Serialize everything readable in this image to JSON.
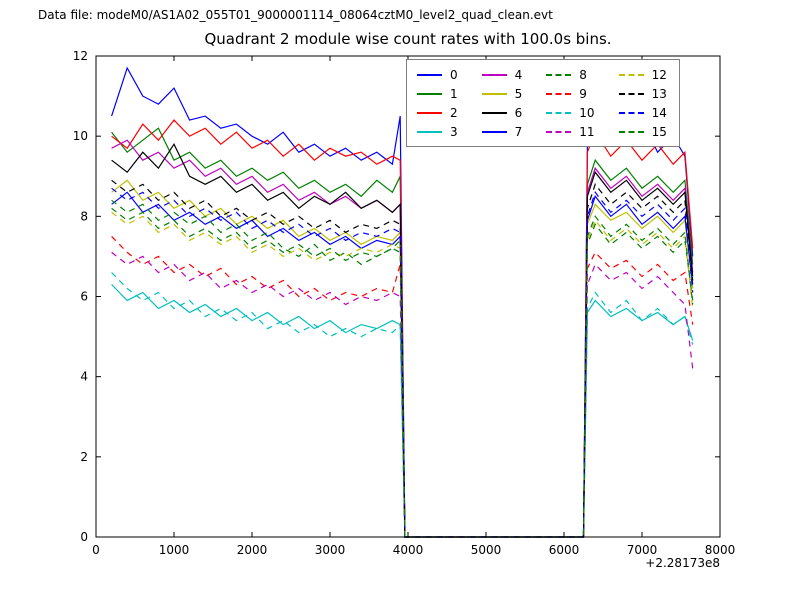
{
  "header": {
    "data_file_label": "Data file: modeM0/AS1A02_055T01_9000001114_08064cztM0_level2_quad_clean.evt"
  },
  "chart_data": {
    "type": "line",
    "title": "Quadrant 2 module wise count rates with 100.0s bins.",
    "xlabel": "",
    "ylabel": "",
    "xlim": [
      0,
      8000
    ],
    "ylim": [
      0,
      12
    ],
    "xticks": [
      0,
      1000,
      2000,
      3000,
      4000,
      5000,
      6000,
      7000,
      8000
    ],
    "yticks": [
      0,
      2,
      4,
      6,
      8,
      10,
      12
    ],
    "x_offset_label": "+2.28173e8",
    "grid": false,
    "legend_position": "upper center",
    "legend_columns": 4,
    "x": [
      200,
      400,
      600,
      800,
      1000,
      1200,
      1400,
      1600,
      1800,
      2000,
      2200,
      2400,
      2600,
      2800,
      3000,
      3200,
      3400,
      3600,
      3800,
      3900,
      3960,
      4000,
      6250,
      6300,
      6400,
      6600,
      6800,
      7000,
      7200,
      7400,
      7550,
      7650
    ],
    "series": [
      {
        "name": "0",
        "color": "#0000ff",
        "dash": false,
        "y": [
          10.5,
          11.7,
          11.0,
          10.8,
          11.2,
          10.4,
          10.5,
          10.2,
          10.3,
          10.0,
          9.8,
          10.1,
          9.6,
          9.8,
          9.5,
          9.7,
          9.4,
          9.6,
          9.3,
          10.5,
          0,
          0,
          0,
          9.8,
          11.3,
          10.2,
          9.9,
          10.4,
          9.6,
          10.0,
          9.5,
          7.0
        ]
      },
      {
        "name": "1",
        "color": "#007f00",
        "dash": false,
        "y": [
          10.1,
          9.6,
          9.9,
          10.2,
          9.4,
          9.6,
          9.2,
          9.4,
          9.0,
          9.2,
          8.9,
          9.1,
          8.7,
          8.9,
          8.6,
          8.8,
          8.5,
          8.9,
          8.6,
          9.0,
          0,
          0,
          0,
          8.8,
          9.4,
          8.9,
          9.2,
          8.7,
          9.0,
          8.6,
          8.9,
          6.8
        ]
      },
      {
        "name": "2",
        "color": "#ff0000",
        "dash": false,
        "y": [
          10.0,
          9.7,
          10.3,
          9.9,
          10.4,
          10.0,
          10.2,
          9.8,
          10.1,
          9.7,
          9.9,
          9.5,
          9.8,
          9.4,
          9.7,
          9.5,
          9.6,
          9.3,
          9.5,
          9.4,
          0,
          0,
          0,
          9.6,
          10.1,
          9.5,
          9.9,
          9.4,
          9.8,
          9.3,
          9.6,
          7.2
        ]
      },
      {
        "name": "3",
        "color": "#00bfbf",
        "dash": false,
        "y": [
          6.3,
          5.9,
          6.1,
          5.7,
          5.9,
          5.6,
          5.8,
          5.5,
          5.7,
          5.4,
          5.6,
          5.3,
          5.5,
          5.2,
          5.4,
          5.1,
          5.3,
          5.2,
          5.4,
          5.3,
          0,
          0,
          0,
          5.6,
          5.9,
          5.5,
          5.7,
          5.4,
          5.6,
          5.3,
          5.5,
          4.9
        ]
      },
      {
        "name": "4",
        "color": "#bf00bf",
        "dash": false,
        "y": [
          9.7,
          9.9,
          9.4,
          9.6,
          9.2,
          9.4,
          9.0,
          9.2,
          8.8,
          9.0,
          8.6,
          8.8,
          8.4,
          8.6,
          8.3,
          8.5,
          8.2,
          8.4,
          8.1,
          8.3,
          0,
          0,
          0,
          8.6,
          9.2,
          8.7,
          9.0,
          8.5,
          8.8,
          8.4,
          8.7,
          6.6
        ]
      },
      {
        "name": "5",
        "color": "#bfbf00",
        "dash": false,
        "y": [
          8.6,
          8.9,
          8.4,
          8.6,
          8.2,
          8.4,
          8.0,
          8.2,
          7.8,
          8.0,
          7.7,
          7.9,
          7.5,
          7.7,
          7.4,
          7.6,
          7.3,
          7.5,
          7.4,
          7.6,
          0,
          0,
          0,
          7.8,
          8.3,
          7.9,
          8.1,
          7.7,
          8.0,
          7.6,
          7.9,
          6.2
        ]
      },
      {
        "name": "6",
        "color": "#000000",
        "dash": false,
        "y": [
          9.4,
          9.1,
          9.6,
          9.2,
          9.8,
          9.0,
          8.8,
          9.0,
          8.6,
          8.8,
          8.4,
          8.6,
          8.2,
          8.5,
          8.3,
          8.6,
          8.2,
          8.4,
          8.1,
          8.3,
          0,
          0,
          0,
          8.5,
          9.1,
          8.6,
          8.9,
          8.4,
          8.7,
          8.3,
          8.6,
          6.5
        ]
      },
      {
        "name": "7",
        "color": "#0000ff",
        "dash": false,
        "y": [
          8.3,
          8.6,
          8.1,
          8.3,
          7.9,
          8.1,
          7.8,
          8.0,
          7.7,
          7.9,
          7.5,
          7.7,
          7.4,
          7.6,
          7.3,
          7.5,
          7.2,
          7.4,
          7.3,
          7.5,
          0,
          0,
          0,
          7.9,
          8.5,
          8.0,
          8.3,
          7.8,
          8.1,
          7.7,
          8.0,
          6.3
        ]
      },
      {
        "name": "8",
        "color": "#007f00",
        "dash": true,
        "y": [
          8.4,
          8.1,
          8.3,
          7.9,
          8.1,
          7.8,
          8.0,
          7.6,
          7.8,
          7.4,
          7.6,
          7.2,
          7.0,
          7.3,
          6.9,
          7.1,
          6.8,
          7.0,
          7.2,
          7.4,
          0,
          0,
          0,
          7.3,
          7.8,
          7.3,
          7.6,
          7.2,
          7.5,
          7.1,
          7.4,
          5.9
        ]
      },
      {
        "name": "9",
        "color": "#ff0000",
        "dash": true,
        "y": [
          7.5,
          7.1,
          6.8,
          7.0,
          6.6,
          6.8,
          6.5,
          6.7,
          6.3,
          6.5,
          6.2,
          6.4,
          6.0,
          6.2,
          5.9,
          6.1,
          6.0,
          6.2,
          6.1,
          6.8,
          0,
          0,
          0,
          6.7,
          7.1,
          6.7,
          6.9,
          6.5,
          6.8,
          6.4,
          6.6,
          5.3
        ]
      },
      {
        "name": "10",
        "color": "#00bfbf",
        "dash": true,
        "y": [
          6.6,
          6.2,
          5.9,
          6.1,
          5.7,
          5.9,
          5.5,
          5.7,
          5.4,
          5.6,
          5.2,
          5.4,
          5.1,
          5.3,
          5.0,
          5.2,
          5.0,
          5.2,
          5.1,
          5.3,
          0,
          0,
          0,
          5.7,
          6.1,
          5.6,
          5.9,
          5.4,
          5.7,
          5.3,
          5.5,
          4.8
        ]
      },
      {
        "name": "11",
        "color": "#bf00bf",
        "dash": true,
        "y": [
          7.1,
          6.8,
          7.0,
          6.6,
          6.8,
          6.4,
          6.6,
          6.2,
          6.4,
          6.1,
          6.3,
          6.0,
          6.2,
          5.9,
          6.1,
          5.8,
          6.0,
          5.9,
          6.1,
          6.0,
          0,
          0,
          0,
          6.3,
          6.8,
          6.4,
          6.6,
          6.2,
          6.5,
          6.1,
          5.8,
          4.2
        ]
      },
      {
        "name": "12",
        "color": "#bfbf00",
        "dash": true,
        "y": [
          8.1,
          7.8,
          8.0,
          7.6,
          7.8,
          7.4,
          7.6,
          7.3,
          7.5,
          7.1,
          7.3,
          7.0,
          7.2,
          6.9,
          7.1,
          7.0,
          7.2,
          7.1,
          7.3,
          7.2,
          0,
          0,
          0,
          7.4,
          7.9,
          7.4,
          7.7,
          7.3,
          7.6,
          7.2,
          7.5,
          5.7
        ]
      },
      {
        "name": "13",
        "color": "#000000",
        "dash": true,
        "y": [
          8.9,
          8.6,
          8.8,
          8.4,
          8.6,
          8.2,
          8.4,
          8.0,
          8.2,
          7.9,
          8.1,
          7.8,
          8.0,
          7.7,
          7.9,
          7.6,
          7.8,
          7.7,
          7.9,
          7.8,
          0,
          0,
          0,
          8.2,
          8.8,
          8.3,
          8.6,
          8.2,
          8.5,
          8.1,
          8.4,
          6.4
        ]
      },
      {
        "name": "14",
        "color": "#0000ff",
        "dash": true,
        "y": [
          8.7,
          8.4,
          8.6,
          8.2,
          8.4,
          8.0,
          8.2,
          7.9,
          8.1,
          7.7,
          7.9,
          7.6,
          7.8,
          7.5,
          7.7,
          7.4,
          7.6,
          7.5,
          7.7,
          7.6,
          0,
          0,
          0,
          8.0,
          8.6,
          8.1,
          8.4,
          8.0,
          8.3,
          7.9,
          8.2,
          6.1
        ]
      },
      {
        "name": "15",
        "color": "#007f00",
        "dash": true,
        "y": [
          8.2,
          7.9,
          8.1,
          7.7,
          7.9,
          7.5,
          7.7,
          7.4,
          7.6,
          7.2,
          7.4,
          7.1,
          7.3,
          7.0,
          7.2,
          6.9,
          7.1,
          7.0,
          7.2,
          7.1,
          0,
          0,
          0,
          7.5,
          8.0,
          7.5,
          7.8,
          7.4,
          7.7,
          7.3,
          7.6,
          5.8
        ]
      }
    ]
  }
}
